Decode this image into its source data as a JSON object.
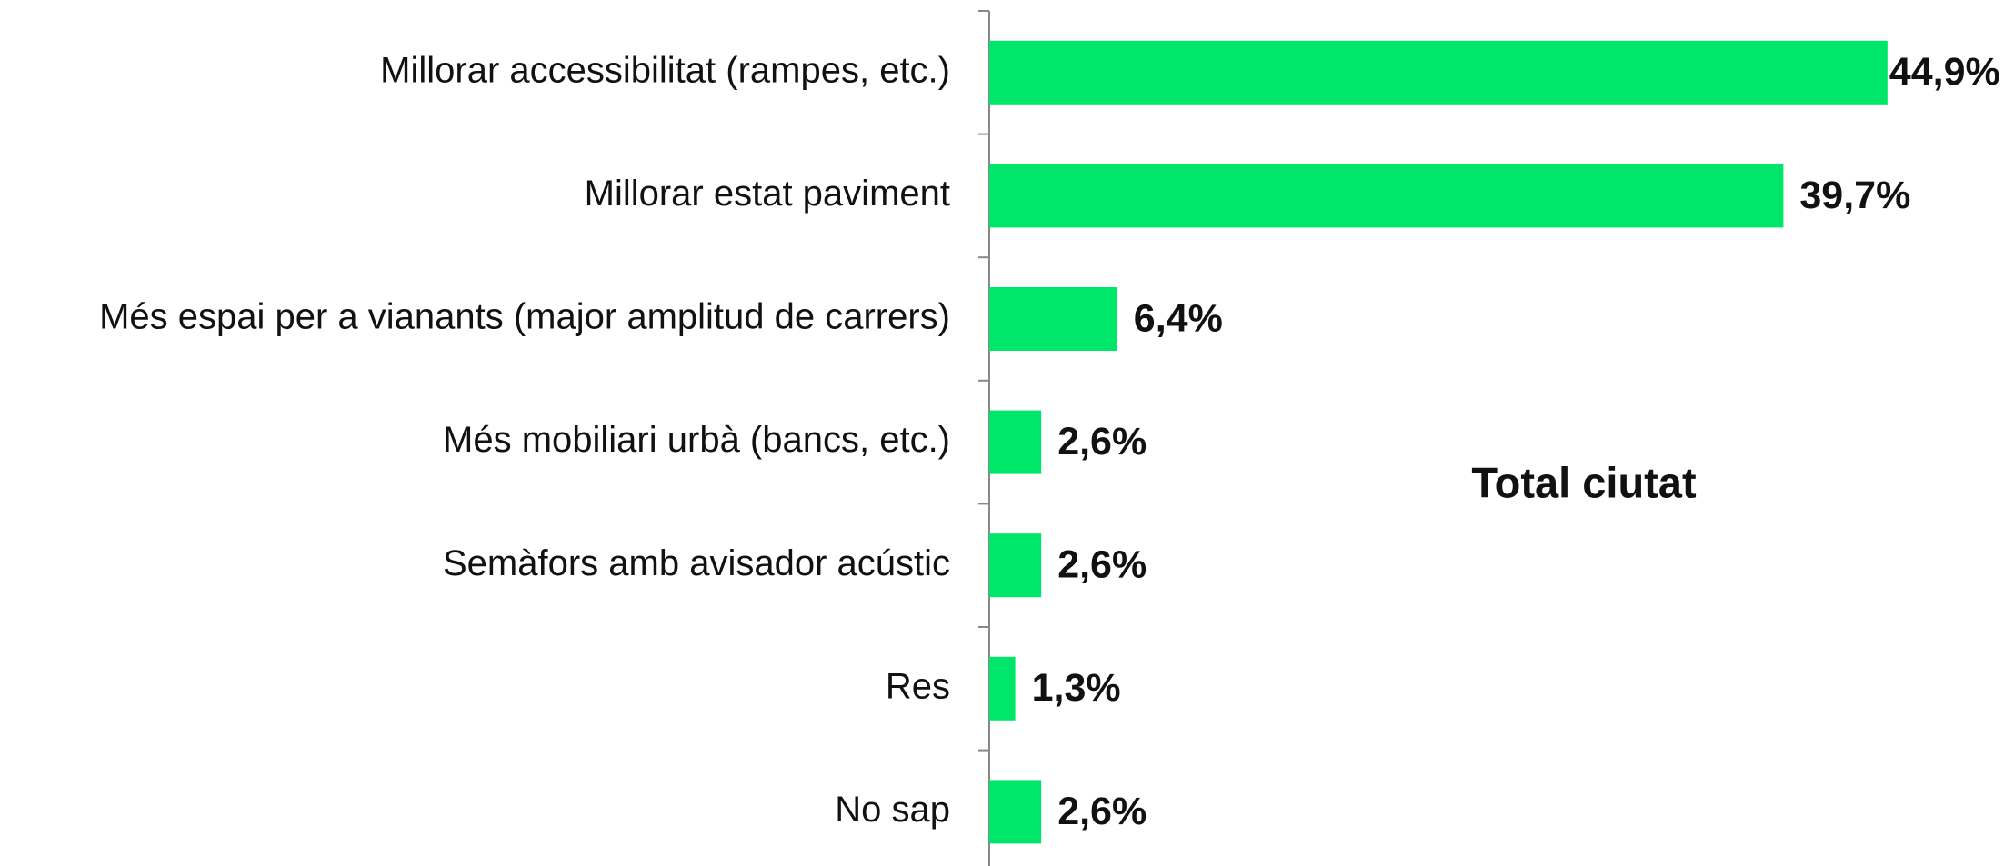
{
  "chart_data": {
    "type": "barh",
    "title": "Total ciutat",
    "categories": [
      "Millorar accessibilitat (rampes, etc.)",
      "Millorar estat paviment",
      "Més espai per a vianants (major amplitud de carrers)",
      "Més mobiliari urbà (bancs, etc.)",
      "Semàfors amb avisador acústic",
      "Res",
      "No sap"
    ],
    "values": [
      44.9,
      39.7,
      6.4,
      2.6,
      2.6,
      1.3,
      2.6
    ],
    "value_labels": [
      "44,9%",
      "39,7%",
      "6,4%",
      "2,6%",
      "2,6%",
      "1,3%",
      "2,6%"
    ],
    "color": "#00e66b",
    "xlim": [
      0,
      50
    ]
  }
}
